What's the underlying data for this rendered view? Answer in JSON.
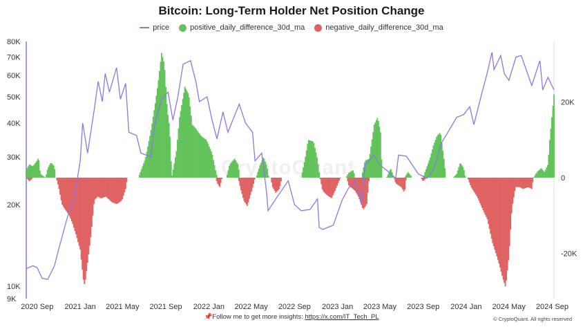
{
  "chart_data": {
    "type": "bar",
    "title": "Bitcoin: Long-Term Holder Net Position Change",
    "series": [
      {
        "name": "price",
        "type": "line",
        "axis": "left",
        "color": "#8877e8",
        "points": [
          [
            "2020-08-01",
            11600
          ],
          [
            "2020-08-20",
            11900
          ],
          [
            "2020-09-01",
            11700
          ],
          [
            "2020-09-15",
            10700
          ],
          [
            "2020-10-01",
            10600
          ],
          [
            "2020-10-20",
            11900
          ],
          [
            "2020-11-01",
            13700
          ],
          [
            "2020-11-15",
            16000
          ],
          [
            "2020-12-01",
            19000
          ],
          [
            "2020-12-15",
            21000
          ],
          [
            "2021-01-01",
            29000
          ],
          [
            "2021-01-08",
            40000
          ],
          [
            "2021-01-22",
            31000
          ],
          [
            "2021-02-10",
            45000
          ],
          [
            "2021-02-21",
            57000
          ],
          [
            "2021-03-05",
            48000
          ],
          [
            "2021-03-13",
            61000
          ],
          [
            "2021-03-25",
            52000
          ],
          [
            "2021-04-14",
            64000
          ],
          [
            "2021-04-25",
            49000
          ],
          [
            "2021-05-10",
            56000
          ],
          [
            "2021-05-19",
            37000
          ],
          [
            "2021-06-10",
            36000
          ],
          [
            "2021-06-22",
            31000
          ],
          [
            "2021-07-20",
            30000
          ],
          [
            "2021-08-01",
            40000
          ],
          [
            "2021-08-20",
            49000
          ],
          [
            "2021-09-07",
            52000
          ],
          [
            "2021-09-21",
            41000
          ],
          [
            "2021-10-05",
            50000
          ],
          [
            "2021-10-20",
            66000
          ],
          [
            "2021-11-10",
            68000
          ],
          [
            "2021-11-25",
            57000
          ],
          [
            "2021-12-05",
            48000
          ],
          [
            "2021-12-27",
            50000
          ],
          [
            "2022-01-10",
            41000
          ],
          [
            "2022-01-24",
            35000
          ],
          [
            "2022-02-10",
            44000
          ],
          [
            "2022-02-24",
            37000
          ],
          [
            "2022-03-28",
            47000
          ],
          [
            "2022-04-15",
            40000
          ],
          [
            "2022-05-05",
            37000
          ],
          [
            "2022-05-12",
            29000
          ],
          [
            "2022-05-31",
            31000
          ],
          [
            "2022-06-14",
            22000
          ],
          [
            "2022-06-18",
            19000
          ],
          [
            "2022-07-10",
            21000
          ],
          [
            "2022-08-14",
            24500
          ],
          [
            "2022-09-01",
            20000
          ],
          [
            "2022-09-20",
            19000
          ],
          [
            "2022-10-15",
            19200
          ],
          [
            "2022-11-05",
            21000
          ],
          [
            "2022-11-10",
            16500
          ],
          [
            "2022-11-20",
            16200
          ],
          [
            "2022-12-20",
            16800
          ],
          [
            "2023-01-14",
            20800
          ],
          [
            "2023-02-01",
            23000
          ],
          [
            "2023-02-20",
            24500
          ],
          [
            "2023-03-10",
            20000
          ],
          [
            "2023-03-20",
            28000
          ],
          [
            "2023-04-14",
            30500
          ],
          [
            "2023-05-01",
            28000
          ],
          [
            "2023-05-25",
            26500
          ],
          [
            "2023-06-15",
            25000
          ],
          [
            "2023-06-23",
            30500
          ],
          [
            "2023-07-15",
            30200
          ],
          [
            "2023-08-18",
            26000
          ],
          [
            "2023-09-11",
            25000
          ],
          [
            "2023-09-30",
            27000
          ],
          [
            "2023-10-24",
            34000
          ],
          [
            "2023-11-10",
            37000
          ],
          [
            "2023-12-05",
            42000
          ],
          [
            "2023-12-25",
            43000
          ],
          [
            "2024-01-11",
            46000
          ],
          [
            "2024-01-23",
            39500
          ],
          [
            "2024-02-15",
            52000
          ],
          [
            "2024-02-28",
            60000
          ],
          [
            "2024-03-14",
            73000
          ],
          [
            "2024-03-20",
            63000
          ],
          [
            "2024-04-08",
            71000
          ],
          [
            "2024-04-18",
            61000
          ],
          [
            "2024-05-01",
            57500
          ],
          [
            "2024-05-21",
            70000
          ],
          [
            "2024-06-05",
            71000
          ],
          [
            "2024-06-24",
            60500
          ],
          [
            "2024-07-05",
            55000
          ],
          [
            "2024-07-28",
            68000
          ],
          [
            "2024-08-05",
            53000
          ],
          [
            "2024-08-20",
            59000
          ],
          [
            "2024-09-06",
            53000
          ]
        ]
      },
      {
        "name": "positive_daily_difference_30d_ma",
        "type": "bar",
        "axis": "right",
        "color": "#62c35a",
        "points": [
          [
            "2020-08-01",
            2000
          ],
          [
            "2020-08-10",
            3500
          ],
          [
            "2020-08-20",
            3000
          ],
          [
            "2020-09-01",
            4500
          ],
          [
            "2020-09-05",
            5500
          ],
          [
            "2020-09-10",
            1000
          ],
          [
            "2020-09-25",
            0
          ],
          [
            "2020-10-01",
            2500
          ],
          [
            "2020-10-10",
            4000
          ],
          [
            "2020-10-20",
            3000
          ],
          [
            "2020-10-24",
            0
          ],
          [
            "2021-06-15",
            0
          ],
          [
            "2021-06-25",
            2500
          ],
          [
            "2021-07-05",
            5000
          ],
          [
            "2021-07-20",
            12000
          ],
          [
            "2021-08-01",
            19000
          ],
          [
            "2021-08-10",
            25000
          ],
          [
            "2021-08-20",
            33000
          ],
          [
            "2021-08-28",
            30000
          ],
          [
            "2021-09-05",
            18000
          ],
          [
            "2021-09-12",
            13000
          ],
          [
            "2021-09-18",
            0
          ],
          [
            "2021-10-01",
            7000
          ],
          [
            "2021-10-10",
            16000
          ],
          [
            "2021-10-25",
            24000
          ],
          [
            "2021-11-05",
            22000
          ],
          [
            "2021-11-15",
            14000
          ],
          [
            "2021-11-25",
            13000
          ],
          [
            "2021-12-10",
            11000
          ],
          [
            "2021-12-25",
            10000
          ],
          [
            "2022-01-10",
            6500
          ],
          [
            "2022-01-20",
            2000
          ],
          [
            "2022-01-25",
            0
          ],
          [
            "2022-02-20",
            0
          ],
          [
            "2022-03-01",
            3500
          ],
          [
            "2022-03-15",
            5000
          ],
          [
            "2022-03-25",
            3500
          ],
          [
            "2022-03-30",
            0
          ],
          [
            "2022-05-15",
            0
          ],
          [
            "2022-05-25",
            3000
          ],
          [
            "2022-06-05",
            5500
          ],
          [
            "2022-06-15",
            3000
          ],
          [
            "2022-06-20",
            0
          ],
          [
            "2022-09-20",
            0
          ],
          [
            "2022-10-01",
            5000
          ],
          [
            "2022-10-10",
            10000
          ],
          [
            "2022-10-25",
            9500
          ],
          [
            "2022-11-05",
            5000
          ],
          [
            "2022-11-12",
            0
          ],
          [
            "2023-01-25",
            0
          ],
          [
            "2023-02-01",
            1200
          ],
          [
            "2023-02-15",
            2000
          ],
          [
            "2023-02-20",
            0
          ],
          [
            "2023-03-10",
            0
          ],
          [
            "2023-03-20",
            4500
          ],
          [
            "2023-04-01",
            5000
          ],
          [
            "2023-04-15",
            14000
          ],
          [
            "2023-04-25",
            16000
          ],
          [
            "2023-05-03",
            12000
          ],
          [
            "2023-05-08",
            0
          ],
          [
            "2023-05-20",
            0
          ],
          [
            "2023-06-01",
            2500
          ],
          [
            "2023-06-10",
            0
          ],
          [
            "2023-07-10",
            0
          ],
          [
            "2023-07-20",
            1500
          ],
          [
            "2023-08-01",
            0
          ],
          [
            "2023-09-01",
            0
          ],
          [
            "2023-09-10",
            2500
          ],
          [
            "2023-09-20",
            5000
          ],
          [
            "2023-09-30",
            8500
          ],
          [
            "2023-10-10",
            11000
          ],
          [
            "2023-10-20",
            12000
          ],
          [
            "2023-10-30",
            5000
          ],
          [
            "2023-11-05",
            0
          ],
          [
            "2023-11-25",
            0
          ],
          [
            "2023-12-05",
            1000
          ],
          [
            "2023-12-15",
            4000
          ],
          [
            "2023-12-25",
            2500
          ],
          [
            "2023-12-30",
            0
          ],
          [
            "2024-07-10",
            0
          ],
          [
            "2024-07-20",
            1500
          ],
          [
            "2024-08-01",
            2500
          ],
          [
            "2024-08-10",
            1500
          ],
          [
            "2024-08-20",
            3500
          ],
          [
            "2024-08-25",
            10000
          ],
          [
            "2024-09-01",
            17000
          ],
          [
            "2024-09-06",
            22000
          ]
        ]
      },
      {
        "name": "negative_daily_difference_30d_ma",
        "type": "bar",
        "axis": "right",
        "color": "#e06262",
        "points": [
          [
            "2020-08-01",
            0
          ],
          [
            "2020-08-10",
            -1000
          ],
          [
            "2020-08-20",
            0
          ],
          [
            "2020-10-25",
            0
          ],
          [
            "2020-11-01",
            -2500
          ],
          [
            "2020-11-10",
            -7000
          ],
          [
            "2020-11-20",
            -8500
          ],
          [
            "2020-12-01",
            -10000
          ],
          [
            "2020-12-10",
            -12000
          ],
          [
            "2020-12-20",
            -15000
          ],
          [
            "2021-01-01",
            -19000
          ],
          [
            "2021-01-10",
            -27000
          ],
          [
            "2021-01-14",
            -28500
          ],
          [
            "2021-01-20",
            -24000
          ],
          [
            "2021-02-01",
            -15000
          ],
          [
            "2021-02-10",
            -6000
          ],
          [
            "2021-02-20",
            -5000
          ],
          [
            "2021-03-01",
            -5500
          ],
          [
            "2021-03-15",
            -5000
          ],
          [
            "2021-04-01",
            -6500
          ],
          [
            "2021-04-15",
            -7000
          ],
          [
            "2021-04-30",
            -6000
          ],
          [
            "2021-05-10",
            -3000
          ],
          [
            "2021-05-15",
            0
          ],
          [
            "2022-01-20",
            0
          ],
          [
            "2022-01-25",
            -1500
          ],
          [
            "2022-02-01",
            -2500
          ],
          [
            "2022-02-08",
            0
          ],
          [
            "2022-03-25",
            0
          ],
          [
            "2022-04-01",
            -3000
          ],
          [
            "2022-04-10",
            -6000
          ],
          [
            "2022-04-20",
            -7500
          ],
          [
            "2022-05-01",
            -4000
          ],
          [
            "2022-05-10",
            -1000
          ],
          [
            "2022-05-12",
            0
          ],
          [
            "2022-06-25",
            0
          ],
          [
            "2022-07-01",
            -2500
          ],
          [
            "2022-07-10",
            -4000
          ],
          [
            "2022-07-20",
            -3000
          ],
          [
            "2022-07-25",
            -1000
          ],
          [
            "2022-07-28",
            0
          ],
          [
            "2022-11-12",
            0
          ],
          [
            "2022-11-20",
            -3500
          ],
          [
            "2022-12-01",
            -4500
          ],
          [
            "2022-12-15",
            -5500
          ],
          [
            "2022-12-25",
            -3500
          ],
          [
            "2023-01-05",
            -1000
          ],
          [
            "2023-01-10",
            0
          ],
          [
            "2023-01-28",
            0
          ],
          [
            "2023-02-01",
            -2000
          ],
          [
            "2023-02-20",
            -3500
          ],
          [
            "2023-03-01",
            -5000
          ],
          [
            "2023-03-15",
            -8500
          ],
          [
            "2023-03-25",
            -7000
          ],
          [
            "2023-04-01",
            0
          ],
          [
            "2023-06-10",
            0
          ],
          [
            "2023-06-15",
            -1500
          ],
          [
            "2023-07-01",
            -2500
          ],
          [
            "2023-07-10",
            -4000
          ],
          [
            "2023-07-15",
            0
          ],
          [
            "2023-08-25",
            0
          ],
          [
            "2023-09-01",
            -1000
          ],
          [
            "2023-09-10",
            0
          ],
          [
            "2024-01-05",
            0
          ],
          [
            "2024-01-15",
            -2500
          ],
          [
            "2024-02-01",
            -5000
          ],
          [
            "2024-02-15",
            -8000
          ],
          [
            "2024-03-01",
            -11000
          ],
          [
            "2024-03-15",
            -17000
          ],
          [
            "2024-04-01",
            -22000
          ],
          [
            "2024-04-15",
            -27000
          ],
          [
            "2024-04-22",
            -29000
          ],
          [
            "2024-05-01",
            -21000
          ],
          [
            "2024-05-10",
            -8000
          ],
          [
            "2024-05-20",
            -2500
          ],
          [
            "2024-06-01",
            -2500
          ],
          [
            "2024-06-10",
            -3000
          ],
          [
            "2024-06-25",
            -2500
          ],
          [
            "2024-07-05",
            -3000
          ],
          [
            "2024-07-10",
            0
          ]
        ]
      }
    ],
    "y_left_ticks": [
      "80K",
      "70K",
      "60K",
      "50K",
      "40K",
      "30K",
      "20K",
      "10K",
      "9K"
    ],
    "y_right_ticks": [
      "20K",
      "0",
      "-20K"
    ],
    "y_left_scale": "log",
    "y_left_range": [
      9000,
      80000
    ],
    "y_right_range": [
      -32000,
      36000
    ],
    "x_range": [
      "2020-08-01",
      "2024-09-06"
    ],
    "x_ticks": [
      "2020 Sep",
      "2021 Jan",
      "2021 May",
      "2021 Sep",
      "2022 Jan",
      "2022 May",
      "2022 Sep",
      "2023 Jan",
      "2023 May",
      "2023 Sep",
      "2024 Jan",
      "2024 May",
      "2024 Sep"
    ],
    "x_tick_dates": [
      "2020-09-01",
      "2021-01-01",
      "2021-05-01",
      "2021-09-01",
      "2022-01-01",
      "2022-05-01",
      "2022-09-01",
      "2023-01-01",
      "2023-05-01",
      "2023-09-01",
      "2024-01-01",
      "2024-05-01",
      "2024-09-01"
    ],
    "legend_position": "top-center",
    "grid": false
  },
  "legend": {
    "price": "price",
    "positive": "positive_daily_difference_30d_ma",
    "negative": "negative_daily_difference_30d_ma"
  },
  "watermark": "CryptoQuant",
  "footer": {
    "prefix": "📌Follow me to get more insights: ",
    "link": "https://x.com/IT_Tech_PL",
    "credit": "© CryptoQuant. All rights reserved"
  }
}
